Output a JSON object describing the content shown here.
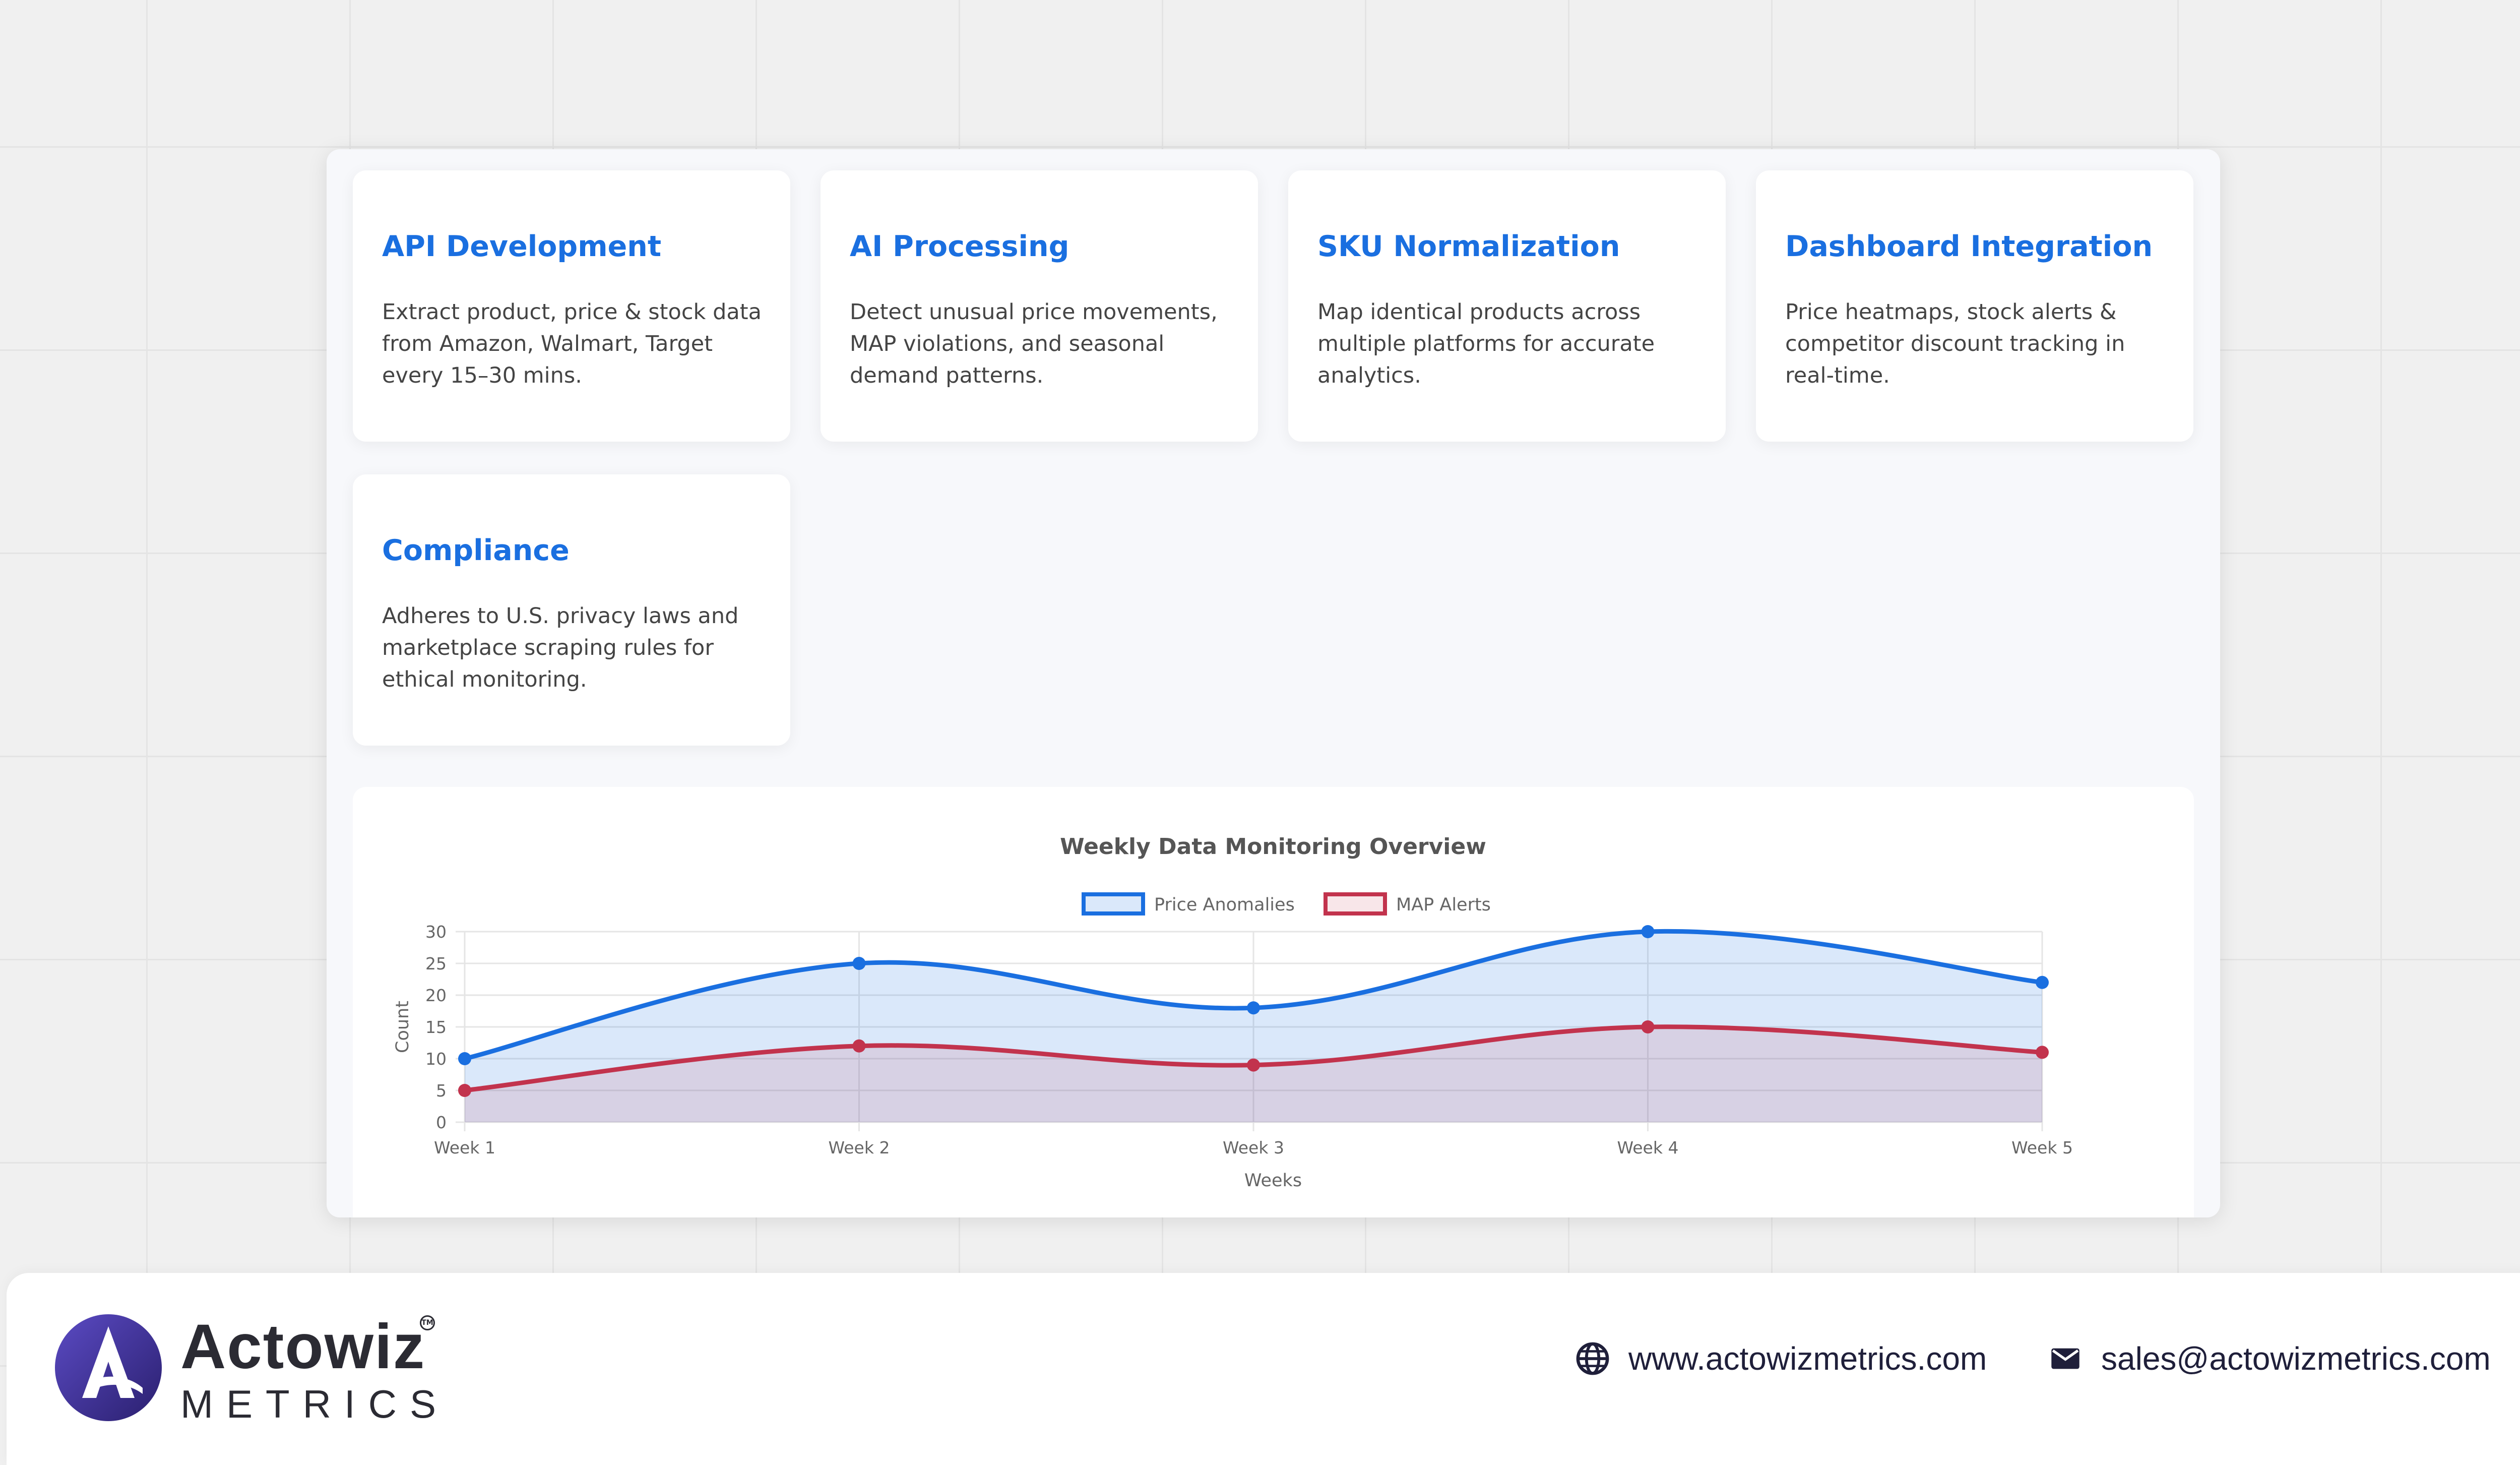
{
  "cards": [
    {
      "title": "API Development",
      "desc": "Extract product, price & stock data from Amazon, Walmart, Target every 15–30 mins."
    },
    {
      "title": "AI Processing",
      "desc": "Detect unusual price movements, MAP violations, and seasonal demand patterns."
    },
    {
      "title": "SKU Normalization",
      "desc": "Map identical products across multiple platforms for accurate analytics."
    },
    {
      "title": "Dashboard Integration",
      "desc": "Price heatmaps, stock alerts & competitor discount tracking in real-time."
    },
    {
      "title": "Compliance",
      "desc": "Adheres to U.S. privacy laws and marketplace scraping rules for ethical monitoring."
    }
  ],
  "chart_data": {
    "type": "line",
    "title": "Weekly Data Monitoring Overview",
    "xlabel": "Weeks",
    "ylabel": "Count",
    "categories": [
      "Week 1",
      "Week 2",
      "Week 3",
      "Week 4",
      "Week 5"
    ],
    "series": [
      {
        "name": "Price Anomalies",
        "values": [
          10,
          25,
          18,
          30,
          22
        ],
        "color": "#1a6fe0",
        "fill": "rgba(26,111,224,0.16)"
      },
      {
        "name": "MAP Alerts",
        "values": [
          5,
          12,
          9,
          15,
          11
        ],
        "color": "#c2334d",
        "fill": "rgba(194,51,77,0.12)"
      }
    ],
    "ylim": [
      0,
      30
    ],
    "yticks": [
      0,
      5,
      10,
      15,
      20,
      25,
      30
    ],
    "grid": true,
    "legend": "top-center",
    "curved": true
  },
  "footer": {
    "brand": "Actowiz",
    "brand_sub": "METRICS",
    "trademark": "TM",
    "website": "www.actowizmetrics.com",
    "email": "sales@actowizmetrics.com",
    "colors": {
      "brand_dark": "#2b2b33",
      "logo_accent": "#4a3aa8"
    }
  }
}
